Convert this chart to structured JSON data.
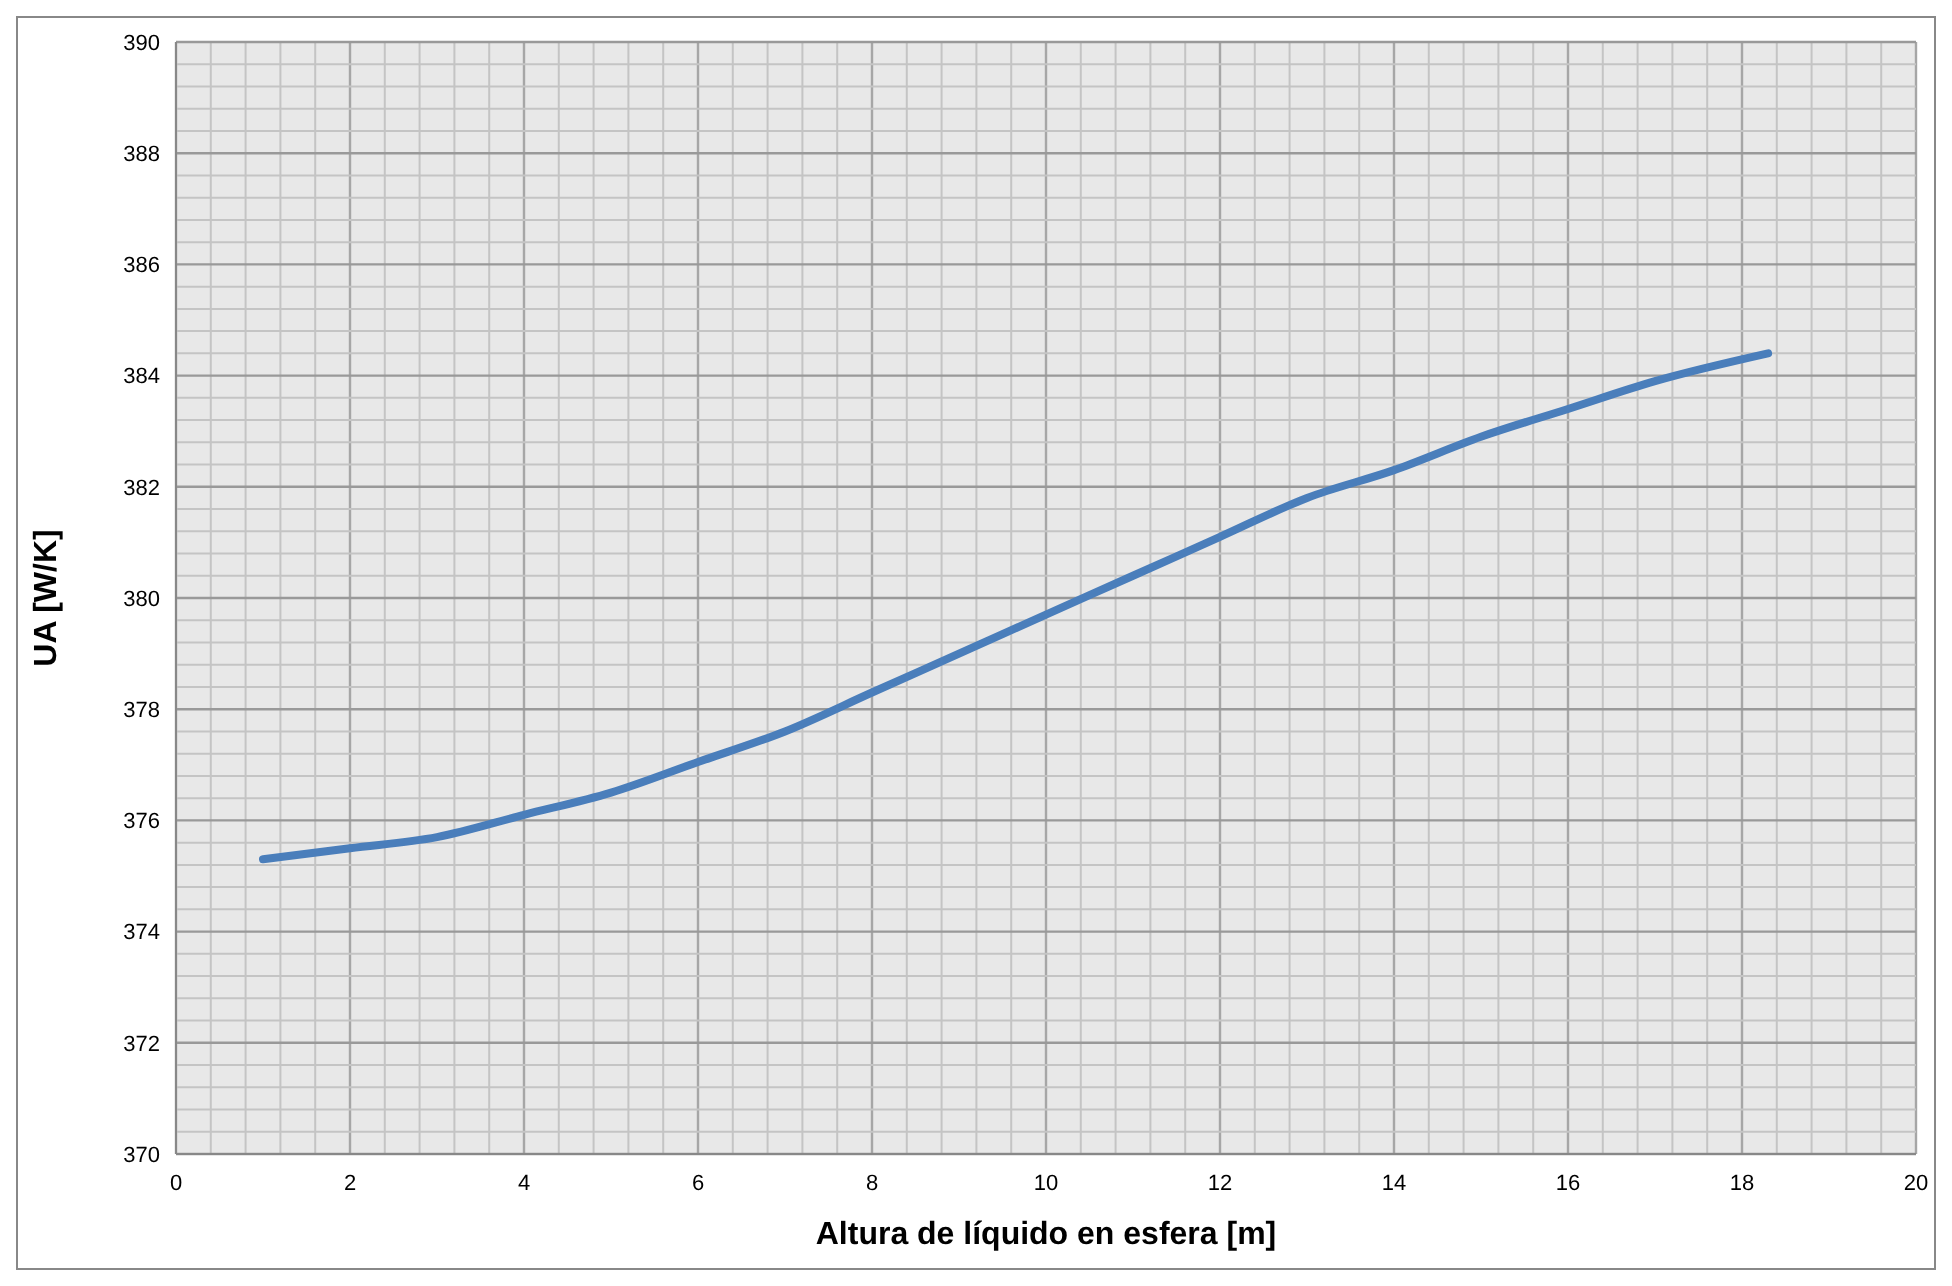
{
  "chart_data": {
    "type": "line",
    "xlabel": "Altura de líquido  en esfera [m]",
    "ylabel": "UA [W/K]",
    "xlim": [
      0,
      20
    ],
    "ylim": [
      370,
      390
    ],
    "xticks": [
      0,
      {
        "value": 0.4,
        "label": null
      },
      {
        "value": 0.8,
        "label": null
      },
      {
        "value": 1.2,
        "label": null
      },
      {
        "value": 1.6,
        "label": null
      },
      2,
      {
        "value": 2.4,
        "label": null
      },
      {
        "value": 2.8,
        "label": null
      },
      {
        "value": 3.2,
        "label": null
      },
      {
        "value": 3.6,
        "label": null
      },
      4,
      {
        "value": 4.4,
        "label": null
      },
      {
        "value": 4.8,
        "label": null
      },
      {
        "value": 5.2,
        "label": null
      },
      {
        "value": 5.6,
        "label": null
      },
      6,
      {
        "value": 6.4,
        "label": null
      },
      {
        "value": 6.8,
        "label": null
      },
      {
        "value": 7.2,
        "label": null
      },
      {
        "value": 7.6,
        "label": null
      },
      8,
      {
        "value": 8.4,
        "label": null
      },
      {
        "value": 8.8,
        "label": null
      },
      {
        "value": 9.2,
        "label": null
      },
      {
        "value": 9.6,
        "label": null
      },
      10,
      {
        "value": 10.4,
        "label": null
      },
      {
        "value": 10.8,
        "label": null
      },
      {
        "value": 11.2,
        "label": null
      },
      {
        "value": 11.6,
        "label": null
      },
      12,
      {
        "value": 12.4,
        "label": null
      },
      {
        "value": 12.8,
        "label": null
      },
      {
        "value": 13.2,
        "label": null
      },
      {
        "value": 13.6,
        "label": null
      },
      14,
      {
        "value": 14.4,
        "label": null
      },
      {
        "value": 14.8,
        "label": null
      },
      {
        "value": 15.2,
        "label": null
      },
      {
        "value": 15.6,
        "label": null
      },
      16,
      {
        "value": 16.4,
        "label": null
      },
      {
        "value": 16.8,
        "label": null
      },
      {
        "value": 17.2,
        "label": null
      },
      {
        "value": 17.6,
        "label": null
      },
      18,
      {
        "value": 18.4,
        "label": null
      },
      {
        "value": 18.8,
        "label": null
      },
      {
        "value": 19.2,
        "label": null
      },
      {
        "value": 19.6,
        "label": null
      },
      20
    ],
    "yticks": [
      370,
      {
        "value": 370.4,
        "label": null
      },
      {
        "value": 370.8,
        "label": null
      },
      {
        "value": 371.2,
        "label": null
      },
      {
        "value": 371.6,
        "label": null
      },
      372,
      {
        "value": 372.4,
        "label": null
      },
      {
        "value": 372.8,
        "label": null
      },
      {
        "value": 373.2,
        "label": null
      },
      {
        "value": 373.6,
        "label": null
      },
      374,
      {
        "value": 374.4,
        "label": null
      },
      {
        "value": 374.8,
        "label": null
      },
      {
        "value": 375.2,
        "label": null
      },
      {
        "value": 375.6,
        "label": null
      },
      376,
      {
        "value": 376.4,
        "label": null
      },
      {
        "value": 376.8,
        "label": null
      },
      {
        "value": 377.2,
        "label": null
      },
      {
        "value": 377.6,
        "label": null
      },
      378,
      {
        "value": 378.4,
        "label": null
      },
      {
        "value": 378.8,
        "label": null
      },
      {
        "value": 379.2,
        "label": null
      },
      {
        "value": 379.6,
        "label": null
      },
      380,
      {
        "value": 380.4,
        "label": null
      },
      {
        "value": 380.8,
        "label": null
      },
      {
        "value": 381.2,
        "label": null
      },
      {
        "value": 381.6,
        "label": null
      },
      382,
      {
        "value": 382.4,
        "label": null
      },
      {
        "value": 382.8,
        "label": null
      },
      {
        "value": 383.2,
        "label": null
      },
      {
        "value": 383.6,
        "label": null
      },
      384,
      {
        "value": 384.4,
        "label": null
      },
      {
        "value": 384.8,
        "label": null
      },
      {
        "value": 385.2,
        "label": null
      },
      {
        "value": 385.6,
        "label": null
      },
      386,
      {
        "value": 386.4,
        "label": null
      },
      {
        "value": 386.8,
        "label": null
      },
      {
        "value": 387.2,
        "label": null
      },
      {
        "value": 387.6,
        "label": null
      },
      388,
      {
        "value": 388.4,
        "label": null
      },
      {
        "value": 388.8,
        "label": null
      },
      {
        "value": 389.2,
        "label": null
      },
      {
        "value": 389.6,
        "label": null
      },
      390
    ],
    "grid": true,
    "marker": "none",
    "line_style": "solid",
    "series": [
      {
        "color": "#4a7ebb",
        "x": [
          1,
          2,
          3,
          4,
          5,
          6,
          7,
          8,
          9,
          10,
          11,
          12,
          13,
          14,
          15,
          16,
          17,
          18.3
        ],
        "values": [
          375.3,
          375.5,
          375.7,
          376.1,
          376.5,
          377.05,
          377.6,
          378.3,
          379.0,
          379.7,
          380.4,
          381.1,
          381.8,
          382.3,
          382.9,
          383.4,
          383.9,
          384.4
        ]
      }
    ]
  }
}
